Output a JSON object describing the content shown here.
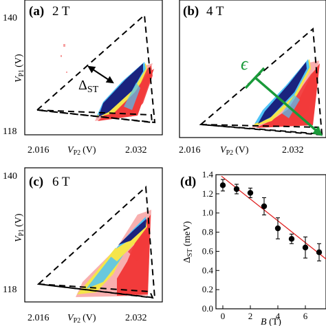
{
  "panels": {
    "a": {
      "tag": "(a)",
      "field": "2 T",
      "annotation": "Δ",
      "annotation_sub": "ST"
    },
    "b": {
      "tag": "(b)",
      "field": "4 T",
      "annotation": "ϵ"
    },
    "c": {
      "tag": "(c)",
      "field": "6 T"
    },
    "d": {
      "tag": "(d)"
    }
  },
  "axes": {
    "y_ticks": [
      "140",
      "118"
    ],
    "x_ticks": [
      "2.016",
      "2.032"
    ],
    "x_label_main": "V",
    "x_label_sub": "P2",
    "x_label_unit": "(V)",
    "y_label_main": "V",
    "y_label_sub": "P1",
    "y_label_unit": "(V)"
  },
  "colors": {
    "dark": "#1a237e",
    "blue": "#3f51b5",
    "cyan": "#4fc3f7",
    "yellow": "#f5e54a",
    "red": "#f23b3b",
    "pink": "#f7a1a1",
    "green_arrow": "#1a9a3a",
    "fit_line": "#e02020"
  },
  "chart_data": {
    "type": "scatter",
    "xlabel": "B (T)",
    "ylabel": "Δ_ST (meV)",
    "xlim": [
      -0.5,
      7.5
    ],
    "ylim": [
      0.0,
      1.4
    ],
    "x_ticks": [
      0,
      2,
      4,
      6
    ],
    "y_ticks": [
      0.0,
      0.2,
      0.4,
      0.6,
      0.8,
      1.0,
      1.2,
      1.4
    ],
    "points": [
      {
        "x": 0,
        "y": 1.29,
        "err": 0.06
      },
      {
        "x": 1,
        "y": 1.25,
        "err": 0.05
      },
      {
        "x": 2,
        "y": 1.21,
        "err": 0.05
      },
      {
        "x": 3,
        "y": 1.07,
        "err": 0.09
      },
      {
        "x": 4,
        "y": 0.84,
        "err": 0.11
      },
      {
        "x": 5,
        "y": 0.73,
        "err": 0.05
      },
      {
        "x": 6,
        "y": 0.64,
        "err": 0.11
      },
      {
        "x": 7,
        "y": 0.59,
        "err": 0.09
      }
    ],
    "fit": {
      "x": [
        -0.1,
        7.5
      ],
      "y": [
        1.385,
        0.52
      ]
    },
    "grid": false,
    "legend": "none"
  }
}
